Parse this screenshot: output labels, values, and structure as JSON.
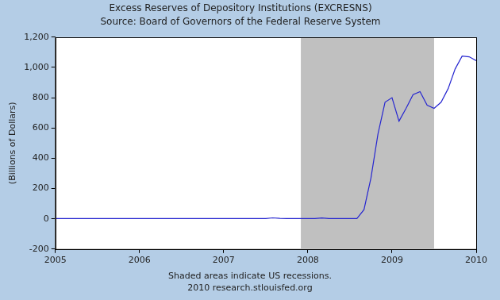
{
  "chart_data": {
    "type": "line",
    "title": "Excess Reserves of Depository Institutions (EXCRESNS)",
    "subtitle": "Source: Board of Governors of the Federal Reserve System",
    "ylabel": "(Billions of Dollars)",
    "notes": [
      "Shaded areas indicate US recessions.",
      "2010 research.stlouisfed.org"
    ],
    "x": [
      2005,
      2005.083,
      2005.167,
      2005.25,
      2005.333,
      2005.417,
      2005.5,
      2005.583,
      2005.667,
      2005.75,
      2005.833,
      2005.917,
      2006,
      2006.083,
      2006.167,
      2006.25,
      2006.333,
      2006.417,
      2006.5,
      2006.583,
      2006.667,
      2006.75,
      2006.833,
      2006.917,
      2007,
      2007.083,
      2007.167,
      2007.25,
      2007.333,
      2007.417,
      2007.5,
      2007.583,
      2007.667,
      2007.75,
      2007.833,
      2007.917,
      2008,
      2008.083,
      2008.167,
      2008.25,
      2008.333,
      2008.417,
      2008.5,
      2008.583,
      2008.667,
      2008.75,
      2008.833,
      2008.917,
      2009,
      2009.083,
      2009.167,
      2009.25,
      2009.333,
      2009.417,
      2009.5,
      2009.583,
      2009.667,
      2009.75,
      2009.833,
      2009.917,
      2010
    ],
    "values": [
      2,
      2,
      2,
      2,
      2,
      2,
      2,
      2,
      2,
      2,
      2,
      2,
      2,
      2,
      2,
      2,
      2,
      2,
      2,
      2,
      2,
      2,
      2,
      2,
      2,
      2,
      2,
      2,
      2,
      2,
      2,
      6,
      3,
      2,
      2,
      2,
      2,
      2,
      5,
      2,
      2,
      2,
      2,
      2,
      60,
      270,
      560,
      770,
      800,
      645,
      730,
      820,
      840,
      750,
      730,
      770,
      860,
      990,
      1075,
      1070,
      1045
    ],
    "color": "#2626d0",
    "shaded_ranges": [
      [
        2007.917,
        2009.5
      ]
    ],
    "xlim": [
      2005,
      2010
    ],
    "xticks": [
      2005,
      2006,
      2007,
      2008,
      2009,
      2010
    ],
    "ylim": [
      -200,
      1200
    ],
    "yticks": [
      -200,
      0,
      200,
      400,
      600,
      800,
      {
        "value": 1000,
        "label": "1,000"
      },
      {
        "value": 1200,
        "label": "1,200"
      }
    ],
    "grid": false
  }
}
